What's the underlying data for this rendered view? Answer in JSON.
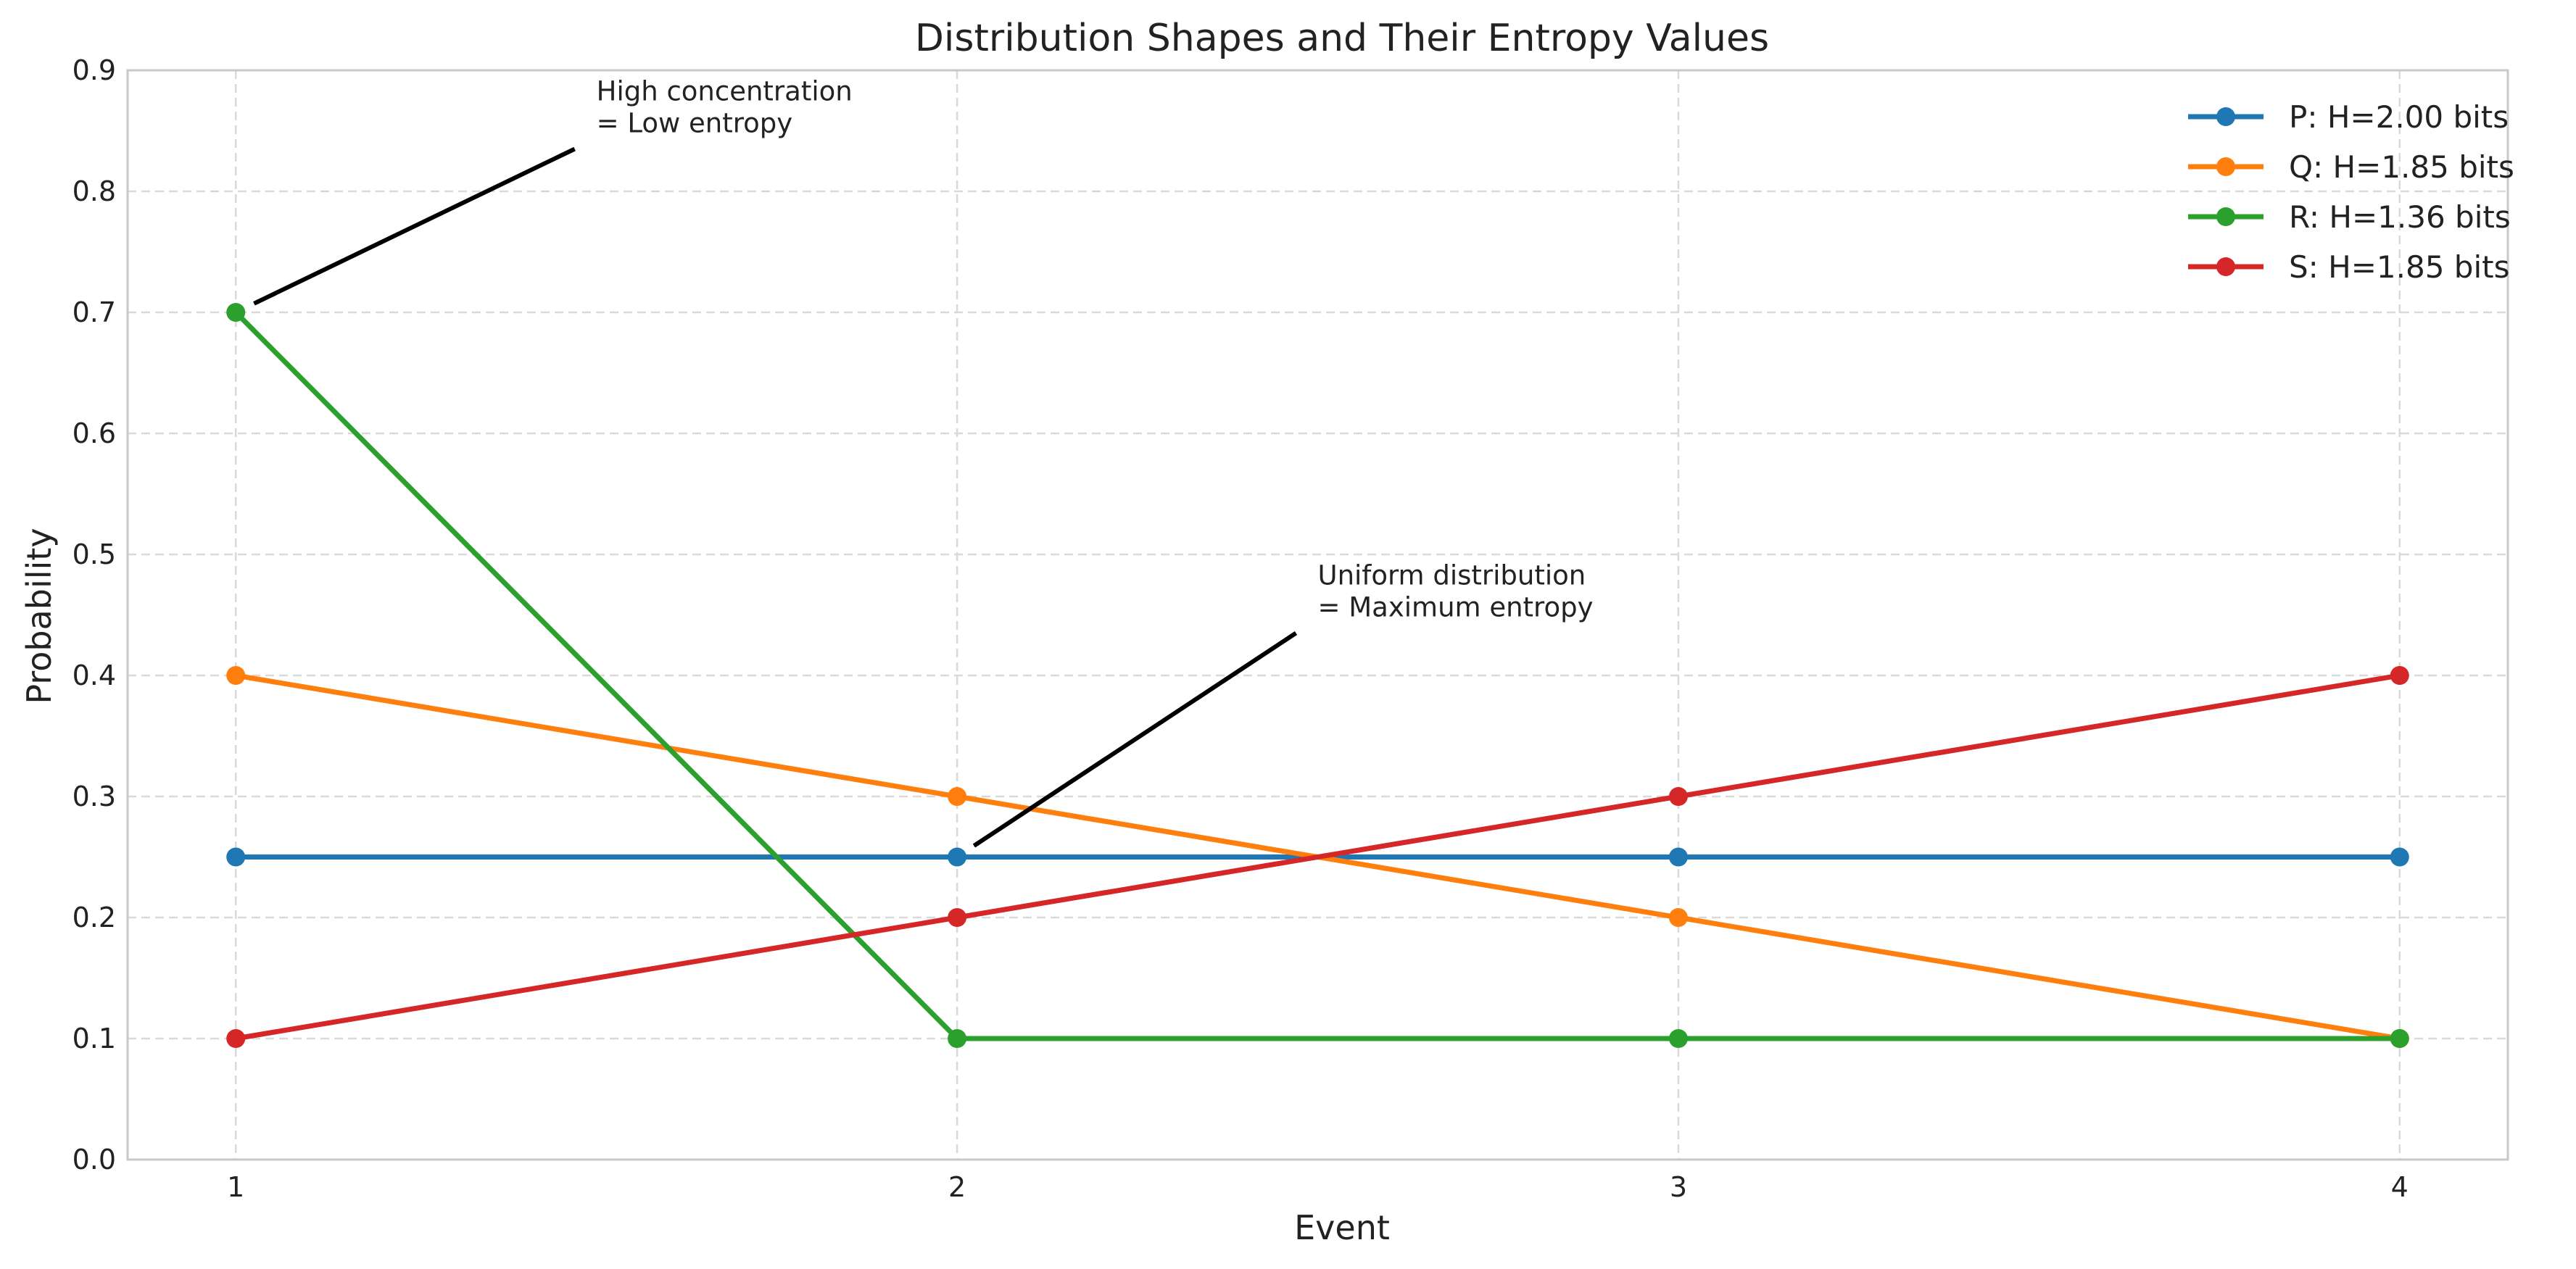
{
  "chart_data": {
    "type": "line",
    "title": "Distribution Shapes and Their Entropy Values",
    "xlabel": "Event",
    "ylabel": "Probability",
    "x": [
      1,
      2,
      3,
      4
    ],
    "x_ticks": [
      "1",
      "2",
      "3",
      "4"
    ],
    "xlim": [
      0.85,
      4.15
    ],
    "ylim": [
      0,
      0.9
    ],
    "y_ticks": [
      "0.0",
      "0.1",
      "0.2",
      "0.3",
      "0.4",
      "0.5",
      "0.6",
      "0.7",
      "0.8",
      "0.9"
    ],
    "grid": true,
    "legend_position": "top-right",
    "series": [
      {
        "name": "P: H=2.00 bits",
        "color": "#1f77b4",
        "values": [
          0.25,
          0.25,
          0.25,
          0.25
        ]
      },
      {
        "name": "Q: H=1.85 bits",
        "color": "#ff7f0e",
        "values": [
          0.4,
          0.3,
          0.2,
          0.1
        ]
      },
      {
        "name": "R: H=1.36 bits",
        "color": "#2ca02c",
        "values": [
          0.7,
          0.1,
          0.1,
          0.1
        ]
      },
      {
        "name": "S: H=1.85 bits",
        "color": "#d62728",
        "values": [
          0.1,
          0.2,
          0.3,
          0.4
        ]
      }
    ],
    "annotations": [
      {
        "lines": [
          "High concentration",
          "= Low entropy"
        ],
        "text_at": [
          1.5,
          0.85
        ],
        "points_to": [
          1.0,
          0.7
        ]
      },
      {
        "lines": [
          "Uniform distribution",
          "= Maximum entropy"
        ],
        "text_at": [
          2.5,
          0.45
        ],
        "points_to": [
          2.0,
          0.25
        ]
      }
    ]
  }
}
